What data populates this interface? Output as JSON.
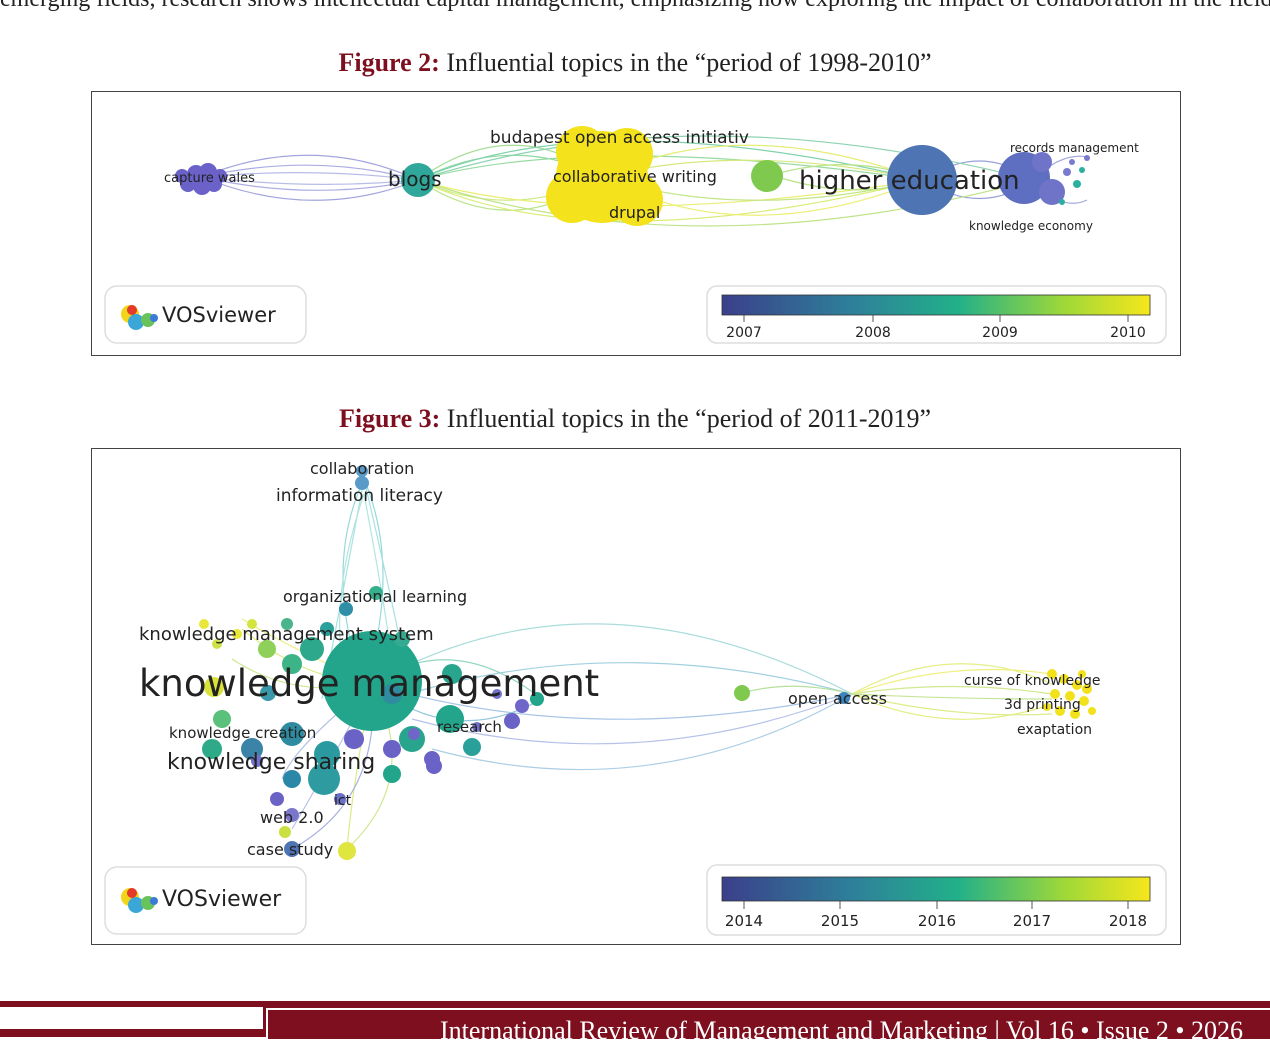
{
  "top_text": "emerging fields, research shows intellectual capital management, emphasizing how exploring the impact of collaboration in the field, particularly",
  "figure2": {
    "label": "Figure 2:",
    "caption": "Influential topics in the “period of 1998-2010”",
    "map_labels": {
      "capture_wales": "capture wales",
      "blogs": "blogs",
      "budapest": "budapest open access initiativ",
      "collab_writing": "collaborative writing",
      "drupal": "drupal",
      "higher_education": "higher education",
      "records_mgmt": "records management",
      "knowledge_economy": "knowledge economy"
    },
    "logo_text": "VOSviewer",
    "legend_ticks": [
      "2007",
      "2008",
      "2009",
      "2010"
    ]
  },
  "figure3": {
    "label": "Figure 3:",
    "caption": "Influential topics in the “period of 2011-2019”",
    "map_labels": {
      "collaboration": "collaboration",
      "information_literacy": "information literacy",
      "organizational_learning": "organizational learning",
      "kms": "knowledge management system",
      "km": "knowledge management",
      "knowledge_creation": "knowledge creation",
      "research": "research",
      "knowledge_sharing": "knowledge sharing",
      "ict": "ict",
      "web20": "web 2.0",
      "case_study": "case study",
      "open_access": "open access",
      "curse": "curse of knowledge",
      "printing": "3d printing",
      "exaptation": "exaptation"
    },
    "logo_text": "VOSviewer",
    "legend_ticks": [
      "2014",
      "2015",
      "2016",
      "2017",
      "2018"
    ]
  },
  "footer": {
    "journal": "International Review of Management and Marketing",
    "issue": "Vol 16 • Issue 2 • 2026"
  },
  "colors": {
    "accent": "#7d0f1e",
    "viridis_start": "#3b4a8c",
    "viridis_mid": "#22a58a",
    "viridis_end": "#f5e91a"
  }
}
